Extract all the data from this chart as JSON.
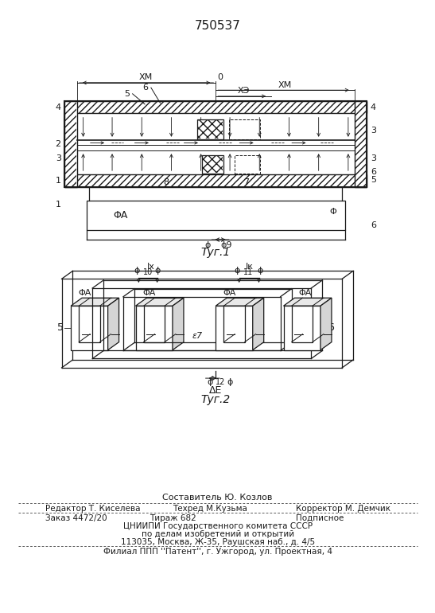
{
  "patent_number": "750537",
  "bg_color": "#ffffff",
  "lc": "#1a1a1a",
  "fig1_caption": "Τуг.1",
  "fig2_caption": "Τуг.2",
  "footer_col1_row1": "Редактор Т. Киселева",
  "footer_col2_row0": "Составитель Ю. Козлов",
  "footer_col2_row1": "Техред М.Кузьма",
  "footer_col3_row1": "Корректор М. Демчик",
  "footer_order": "Заказ 4472/20",
  "footer_tirazh": "Тираж 682",
  "footer_podp": "Подписное",
  "footer_line3": "ЦНИИПИ Государственного комитета СССР",
  "footer_line4": "по делам изобретений и открытий",
  "footer_line5": "113035, Москва, Ж-35, Раушская наб., д. 4/5",
  "footer_filial": "Филиал ППП ''Патент'', г. Ужгород, ул. Проектная, 4"
}
